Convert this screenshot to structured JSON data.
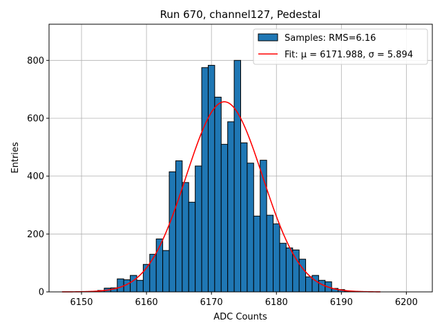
{
  "chart_data": {
    "type": "bar",
    "title": "Run 670, channel127, Pedestal",
    "xlabel": "ADC Counts",
    "ylabel": "Entries",
    "xlim": [
      6145,
      6204
    ],
    "ylim": [
      0,
      925
    ],
    "xticks": [
      6150,
      6160,
      6170,
      6180,
      6190,
      6200
    ],
    "yticks": [
      0,
      200,
      400,
      600,
      800
    ],
    "grid": true,
    "legend_position": "top-right",
    "bin_width": 1,
    "bins": [
      {
        "x": 6147,
        "y": 0
      },
      {
        "x": 6148,
        "y": 0
      },
      {
        "x": 6149,
        "y": 0
      },
      {
        "x": 6150,
        "y": 0
      },
      {
        "x": 6151,
        "y": 0
      },
      {
        "x": 6152,
        "y": 2
      },
      {
        "x": 6153,
        "y": 5
      },
      {
        "x": 6154,
        "y": 13
      },
      {
        "x": 6155,
        "y": 14
      },
      {
        "x": 6156,
        "y": 45
      },
      {
        "x": 6157,
        "y": 42
      },
      {
        "x": 6158,
        "y": 57
      },
      {
        "x": 6159,
        "y": 40
      },
      {
        "x": 6160,
        "y": 95
      },
      {
        "x": 6161,
        "y": 130
      },
      {
        "x": 6162,
        "y": 183
      },
      {
        "x": 6163,
        "y": 143
      },
      {
        "x": 6164,
        "y": 415
      },
      {
        "x": 6165,
        "y": 453
      },
      {
        "x": 6166,
        "y": 378
      },
      {
        "x": 6167,
        "y": 310
      },
      {
        "x": 6168,
        "y": 435
      },
      {
        "x": 6169,
        "y": 775
      },
      {
        "x": 6170,
        "y": 783
      },
      {
        "x": 6171,
        "y": 673
      },
      {
        "x": 6172,
        "y": 510
      },
      {
        "x": 6173,
        "y": 588
      },
      {
        "x": 6174,
        "y": 800
      },
      {
        "x": 6175,
        "y": 515
      },
      {
        "x": 6176,
        "y": 445
      },
      {
        "x": 6177,
        "y": 262
      },
      {
        "x": 6178,
        "y": 455
      },
      {
        "x": 6179,
        "y": 265
      },
      {
        "x": 6180,
        "y": 235
      },
      {
        "x": 6181,
        "y": 168
      },
      {
        "x": 6182,
        "y": 152
      },
      {
        "x": 6183,
        "y": 145
      },
      {
        "x": 6184,
        "y": 113
      },
      {
        "x": 6185,
        "y": 52
      },
      {
        "x": 6186,
        "y": 57
      },
      {
        "x": 6187,
        "y": 40
      },
      {
        "x": 6188,
        "y": 35
      },
      {
        "x": 6189,
        "y": 12
      },
      {
        "x": 6190,
        "y": 8
      },
      {
        "x": 6191,
        "y": 3
      },
      {
        "x": 6192,
        "y": 2
      },
      {
        "x": 6193,
        "y": 1
      },
      {
        "x": 6194,
        "y": 1
      },
      {
        "x": 6195,
        "y": 0
      }
    ],
    "fit": {
      "mu": 6171.988,
      "sigma": 5.894,
      "amplitude": 657,
      "x_range": [
        6147,
        6196
      ]
    },
    "series": [
      {
        "name": "Samples: RMS=6.16",
        "kind": "histogram",
        "color": "#1f77b4"
      },
      {
        "name": "Fit: μ = 6171.988, σ = 5.894",
        "kind": "line",
        "color": "#ff0000"
      }
    ]
  }
}
